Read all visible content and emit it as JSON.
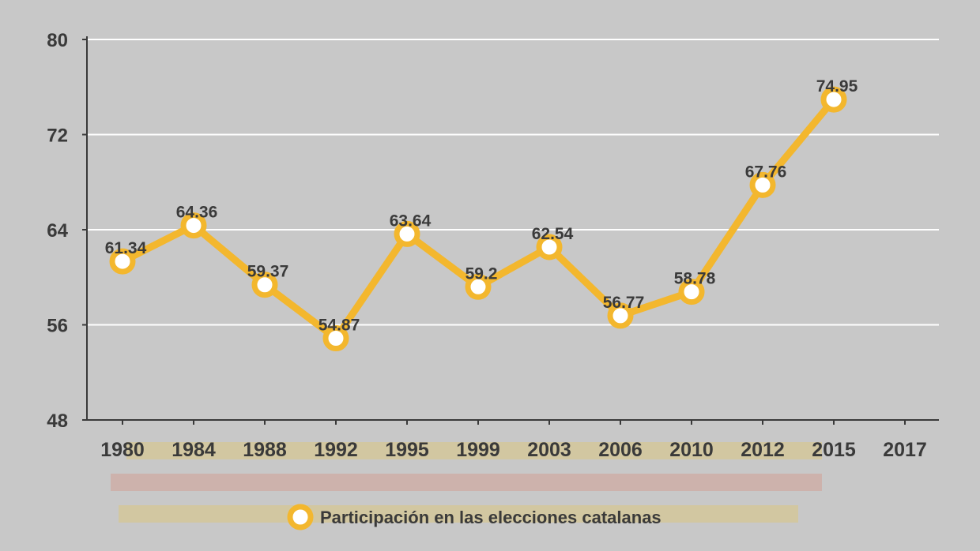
{
  "chart_data": {
    "type": "line",
    "title": "",
    "xlabel": "",
    "ylabel": "",
    "categories": [
      "1980",
      "1984",
      "1988",
      "1992",
      "1995",
      "1999",
      "2003",
      "2006",
      "2010",
      "2012",
      "2015",
      "2017"
    ],
    "series": [
      {
        "name": "Participación en las elecciones catalanas",
        "values": [
          61.34,
          64.36,
          59.37,
          54.87,
          63.64,
          59.2,
          62.54,
          56.77,
          58.78,
          67.76,
          74.95,
          null
        ],
        "labels": [
          "61.34",
          "64.36",
          "59.37",
          "54.87",
          "63.64",
          "59.2",
          "62.54",
          "56.77",
          "58.78",
          "67.76",
          "74.95",
          ""
        ]
      }
    ],
    "ylim": [
      48,
      80
    ],
    "yticks": [
      48,
      56,
      64,
      72,
      80
    ],
    "grid": true,
    "legend_position": "bottom-center"
  },
  "colors": {
    "background": "#c8c8c8",
    "line": "#f3b72e",
    "marker_fill": "#ffffff",
    "text": "#3a3a3a",
    "axis": "#3a3a3a",
    "grid": "#ffffff"
  }
}
